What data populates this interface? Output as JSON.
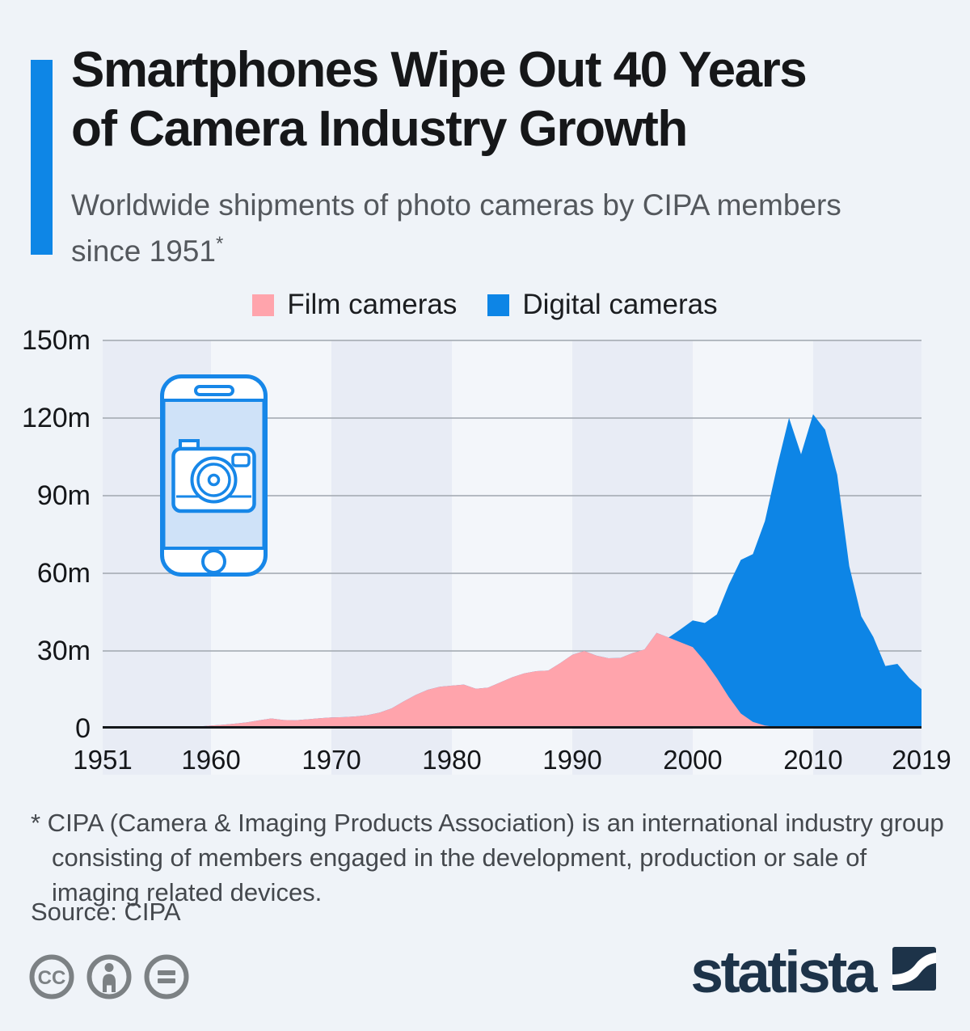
{
  "header": {
    "title_line1": "Smartphones Wipe Out 40 Years",
    "title_line2": "of Camera Industry Growth",
    "subtitle_line1": "Worldwide shipments of photo cameras by CIPA members",
    "subtitle_line2": "since 1951",
    "subtitle_superscript": "*"
  },
  "legend": {
    "items": [
      {
        "label": "Film cameras",
        "color": "#ffa4ac"
      },
      {
        "label": "Digital cameras",
        "color": "#0d85e6"
      }
    ]
  },
  "chart_data": {
    "type": "area",
    "stacked": true,
    "title": "Smartphones Wipe Out 40 Years of Camera Industry Growth",
    "subtitle": "Worldwide shipments of photo cameras by CIPA members since 1951*",
    "unit": "million units",
    "grid": "horizontal",
    "legend_position": "top-center",
    "x_range": [
      1951,
      2019
    ],
    "y_max": 150,
    "x_ticks": [
      1951,
      1960,
      1970,
      1980,
      1990,
      2000,
      2010,
      2019
    ],
    "y_ticks": [
      {
        "value": 150,
        "label": "150m"
      },
      {
        "value": 120,
        "label": "120m"
      },
      {
        "value": 90,
        "label": "90m"
      },
      {
        "value": 60,
        "label": "60m"
      },
      {
        "value": 30,
        "label": "30m"
      },
      {
        "value": 0,
        "label": "0"
      }
    ],
    "years": [
      1951,
      1952,
      1953,
      1954,
      1955,
      1956,
      1957,
      1958,
      1959,
      1960,
      1961,
      1962,
      1963,
      1964,
      1965,
      1966,
      1967,
      1968,
      1969,
      1970,
      1971,
      1972,
      1973,
      1974,
      1975,
      1976,
      1977,
      1978,
      1979,
      1980,
      1981,
      1982,
      1983,
      1984,
      1985,
      1986,
      1987,
      1988,
      1989,
      1990,
      1991,
      1992,
      1993,
      1994,
      1995,
      1996,
      1997,
      1998,
      1999,
      2000,
      2001,
      2002,
      2003,
      2004,
      2005,
      2006,
      2007,
      2008,
      2009,
      2010,
      2011,
      2012,
      2013,
      2014,
      2015,
      2016,
      2017,
      2018,
      2019
    ],
    "series": [
      {
        "name": "Film cameras",
        "color": "#ffa4ac",
        "values": [
          0.1,
          0.15,
          0.2,
          0.25,
          0.3,
          0.4,
          0.5,
          0.6,
          0.8,
          1.2,
          1.5,
          1.9,
          2.4,
          3.2,
          3.9,
          3.3,
          3.2,
          3.6,
          4.0,
          4.3,
          4.4,
          4.7,
          5.2,
          6.2,
          7.8,
          10.5,
          13.0,
          15.0,
          16.2,
          16.6,
          17.0,
          15.4,
          15.8,
          17.8,
          19.8,
          21.3,
          22.2,
          22.4,
          25.3,
          28.5,
          30.0,
          28.2,
          27.2,
          27.3,
          29.2,
          30.6,
          37.0,
          35.2,
          33.3,
          31.5,
          26.0,
          19.5,
          12.2,
          5.8,
          2.6,
          1.2,
          0.6,
          0.3,
          0.1,
          0,
          0,
          0,
          0,
          0,
          0,
          0,
          0,
          0,
          0
        ]
      },
      {
        "name": "Digital cameras",
        "color": "#0d85e6",
        "values": [
          0,
          0,
          0,
          0,
          0,
          0,
          0,
          0,
          0,
          0,
          0,
          0,
          0,
          0,
          0,
          0,
          0,
          0,
          0,
          0,
          0,
          0,
          0,
          0,
          0,
          0,
          0,
          0,
          0,
          0,
          0,
          0,
          0,
          0,
          0,
          0,
          0,
          0,
          0,
          0,
          0,
          0,
          0,
          0,
          0,
          0,
          0,
          0,
          5.1,
          10.3,
          14.8,
          24.6,
          43.4,
          59.4,
          64.8,
          79.0,
          100.4,
          119.8,
          105.9,
          121.5,
          115.5,
          98.1,
          62.8,
          43.4,
          35.4,
          24.2,
          25.0,
          19.4,
          15.2
        ]
      }
    ],
    "annotation_icon": "smartphone-with-camera-icon"
  },
  "footnote": {
    "lines": [
      "* CIPA (Camera & Imaging Products Association) is an international industry group",
      "consisting of members engaged in the development, production or sale of",
      "imaging related devices."
    ],
    "source": "Source: CIPA"
  },
  "footer": {
    "license_icons": [
      "cc-icon",
      "attribution-icon",
      "no-derivatives-icon"
    ],
    "brand": "statista",
    "brand_color": "#1d3349"
  }
}
